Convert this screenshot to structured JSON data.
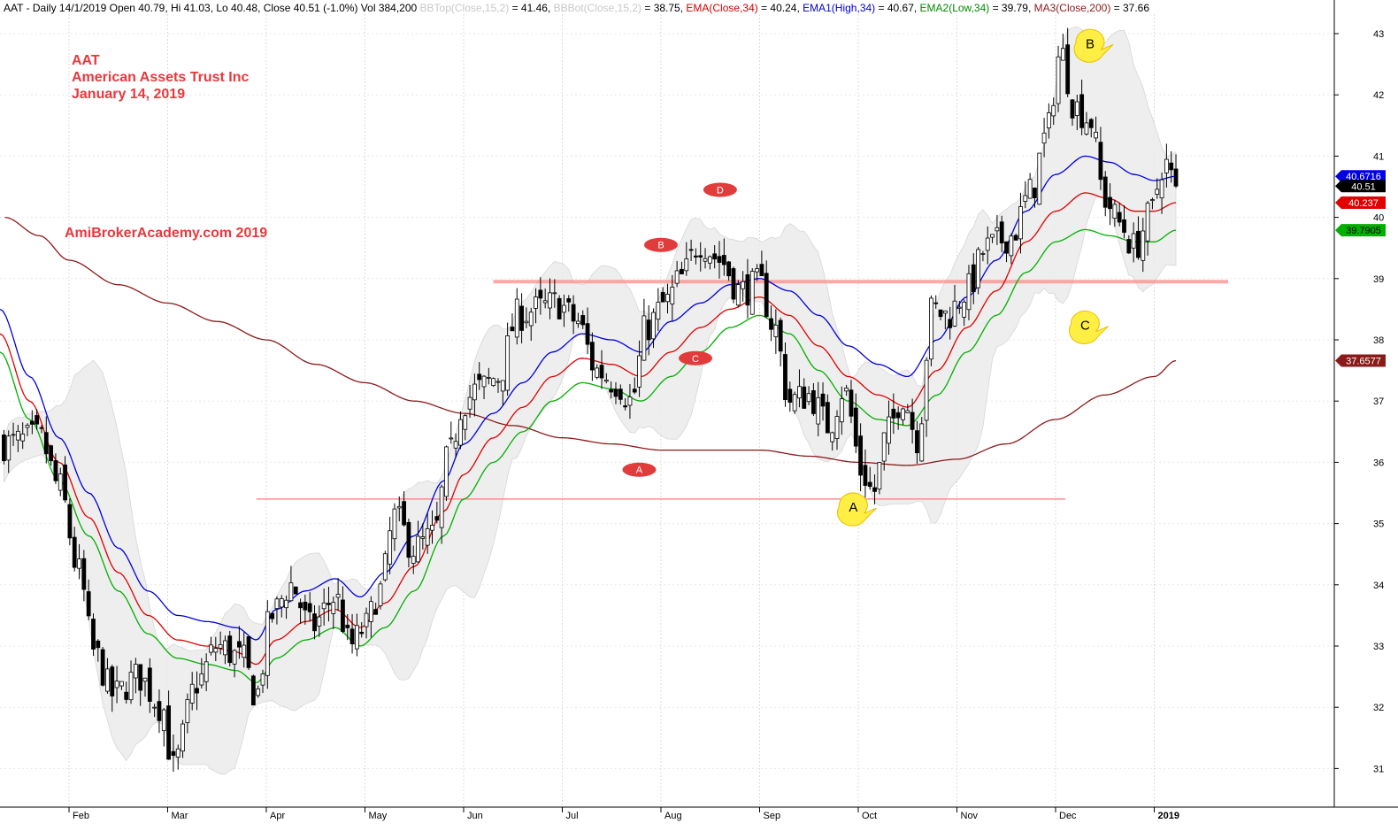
{
  "header": {
    "segments": [
      {
        "text": "AAT - Daily 14/1/2019 Open 40.79, Hi 41.03, Lo 40.48, Close 40.51 (-1.0%) Vol 384,200 ",
        "color": "black"
      },
      {
        "text": "BBTop(Close,15,2)",
        "color": "gray"
      },
      {
        "text": " = 41.46, ",
        "color": "black"
      },
      {
        "text": "BBBot(Close,15,2)",
        "color": "gray"
      },
      {
        "text": " = 38.75, ",
        "color": "black"
      },
      {
        "text": "EMA(Close,34)",
        "color": "red"
      },
      {
        "text": " = 40.24, ",
        "color": "black"
      },
      {
        "text": "EMA1(High,34)",
        "color": "blue"
      },
      {
        "text": " = 40.67, ",
        "color": "black"
      },
      {
        "text": "EMA2(Low,34)",
        "color": "green"
      },
      {
        "text": " = 39.79, ",
        "color": "black"
      },
      {
        "text": "MA3(Close,200)",
        "color": "maroon"
      },
      {
        "text": " = 37.66",
        "color": "black"
      }
    ]
  },
  "title_block": {
    "ticker": "AAT",
    "company": "American Assets Trust Inc",
    "date": "January 14, 2019"
  },
  "watermark": "AmiBrokerAcademy.com  2019",
  "colors": {
    "ema_close": "#e00000",
    "ema_high": "#0000e0",
    "ema_low": "#00b000",
    "ma200": "#8b1a1a",
    "bands": "#ececec",
    "annotation_red": "#e23b3b",
    "annotation_yellow": "#ffee44",
    "support_line": "#ff8c8c"
  },
  "chart_data": {
    "type": "candlestick",
    "y_ticks": [
      31,
      32,
      33,
      34,
      35,
      36,
      37,
      38,
      39,
      40,
      41,
      42,
      43
    ],
    "ylim": [
      30.3,
      43.5
    ],
    "x_labels": [
      "Feb",
      "Mar",
      "Apr",
      "May",
      "Jun",
      "Jul",
      "Aug",
      "Sep",
      "Oct",
      "Nov",
      "Dec",
      "2019"
    ],
    "x_label_positions": [
      0,
      1.0,
      2.0,
      3.0,
      4.0,
      5.0,
      6.0,
      7.0,
      8.0,
      9.0,
      10.0,
      11.0
    ],
    "price_tags": [
      {
        "label": "40.6716",
        "value": 40.67,
        "series": "ema_high"
      },
      {
        "label": "40.51",
        "value": 40.51,
        "series": "close"
      },
      {
        "label": "40.237",
        "value": 40.24,
        "series": "ema_close"
      },
      {
        "label": "39.7905",
        "value": 39.79,
        "series": "ema_low"
      },
      {
        "label": "37.6577",
        "value": 37.66,
        "series": "ma200"
      }
    ],
    "support_lines": [
      {
        "value": 38.95,
        "from_month": 4.3,
        "to_month": 11.75
      },
      {
        "value": 35.4,
        "from_month": 1.9,
        "to_month": 10.1
      }
    ],
    "red_ovals": [
      {
        "label": "A",
        "month": 5.78,
        "value": 35.88
      },
      {
        "label": "B",
        "month": 6.0,
        "value": 39.55
      },
      {
        "label": "C",
        "month": 6.35,
        "value": 37.7
      },
      {
        "label": "D",
        "month": 6.6,
        "value": 40.45
      }
    ],
    "yellow_callouts": [
      {
        "label": "A",
        "month": 7.95,
        "value": 35.28
      },
      {
        "label": "B",
        "month": 10.35,
        "value": 42.85
      },
      {
        "label": "C",
        "month": 10.3,
        "value": 38.25
      }
    ],
    "close_anchors": [
      [
        -0.65,
        36.3
      ],
      [
        -0.3,
        36.4
      ],
      [
        -0.1,
        35.6
      ],
      [
        0.1,
        34.2
      ],
      [
        0.25,
        32.9
      ],
      [
        0.45,
        32.2
      ],
      [
        0.7,
        32.5
      ],
      [
        0.95,
        32.0
      ],
      [
        1.05,
        31.0
      ],
      [
        1.3,
        32.4
      ],
      [
        1.5,
        33.0
      ],
      [
        1.75,
        32.8
      ],
      [
        1.9,
        32.2
      ],
      [
        2.05,
        33.5
      ],
      [
        2.25,
        34.0
      ],
      [
        2.45,
        33.3
      ],
      [
        2.7,
        33.8
      ],
      [
        2.85,
        33.0
      ],
      [
        3.0,
        33.3
      ],
      [
        3.15,
        33.9
      ],
      [
        3.3,
        35.1
      ],
      [
        3.5,
        34.6
      ],
      [
        3.7,
        34.8
      ],
      [
        3.85,
        36.1
      ],
      [
        4.0,
        37.0
      ],
      [
        4.15,
        37.2
      ],
      [
        4.35,
        37.4
      ],
      [
        4.55,
        38.4
      ],
      [
        4.75,
        38.5
      ],
      [
        4.95,
        38.6
      ],
      [
        5.15,
        38.3
      ],
      [
        5.35,
        37.5
      ],
      [
        5.55,
        37.3
      ],
      [
        5.7,
        37.0
      ],
      [
        5.85,
        38.2
      ],
      [
        6.05,
        38.6
      ],
      [
        6.2,
        39.0
      ],
      [
        6.4,
        39.6
      ],
      [
        6.6,
        39.3
      ],
      [
        6.8,
        38.8
      ],
      [
        7.0,
        38.9
      ],
      [
        7.15,
        38.2
      ],
      [
        7.3,
        37.0
      ],
      [
        7.5,
        37.1
      ],
      [
        7.7,
        36.6
      ],
      [
        7.85,
        37.2
      ],
      [
        8.05,
        35.8
      ],
      [
        8.15,
        35.5
      ],
      [
        8.3,
        36.5
      ],
      [
        8.45,
        37.1
      ],
      [
        8.6,
        36.4
      ],
      [
        8.75,
        38.5
      ],
      [
        8.9,
        38.4
      ],
      [
        9.1,
        38.8
      ],
      [
        9.3,
        39.5
      ],
      [
        9.55,
        39.7
      ],
      [
        9.75,
        40.4
      ],
      [
        9.9,
        41.3
      ],
      [
        10.05,
        42.7
      ],
      [
        10.2,
        41.8
      ],
      [
        10.35,
        41.6
      ],
      [
        10.5,
        40.3
      ],
      [
        10.65,
        39.9
      ],
      [
        10.8,
        39.5
      ],
      [
        10.95,
        40.0
      ],
      [
        11.1,
        40.9
      ],
      [
        11.22,
        40.51
      ]
    ],
    "ema_high_anchors": [
      [
        -0.7,
        38.5
      ],
      [
        -0.4,
        37.4
      ],
      [
        -0.1,
        36.4
      ],
      [
        0.2,
        35.5
      ],
      [
        0.5,
        34.6
      ],
      [
        0.8,
        33.9
      ],
      [
        1.1,
        33.5
      ],
      [
        1.4,
        33.4
      ],
      [
        1.7,
        33.3
      ],
      [
        1.9,
        33.1
      ],
      [
        2.1,
        33.6
      ],
      [
        2.4,
        33.9
      ],
      [
        2.7,
        34.1
      ],
      [
        2.95,
        33.8
      ],
      [
        3.2,
        34.2
      ],
      [
        3.5,
        34.8
      ],
      [
        3.8,
        35.7
      ],
      [
        4.0,
        36.3
      ],
      [
        4.3,
        36.8
      ],
      [
        4.6,
        37.3
      ],
      [
        4.9,
        37.8
      ],
      [
        5.2,
        38.1
      ],
      [
        5.5,
        38.0
      ],
      [
        5.8,
        37.8
      ],
      [
        6.1,
        38.3
      ],
      [
        6.4,
        38.6
      ],
      [
        6.7,
        38.9
      ],
      [
        7.0,
        39.0
      ],
      [
        7.3,
        38.8
      ],
      [
        7.6,
        38.4
      ],
      [
        7.9,
        37.9
      ],
      [
        8.2,
        37.6
      ],
      [
        8.5,
        37.4
      ],
      [
        8.8,
        38.0
      ],
      [
        9.1,
        38.7
      ],
      [
        9.4,
        39.3
      ],
      [
        9.7,
        40.1
      ],
      [
        10.0,
        40.7
      ],
      [
        10.3,
        41.0
      ],
      [
        10.55,
        40.9
      ],
      [
        10.8,
        40.7
      ],
      [
        11.0,
        40.6
      ],
      [
        11.22,
        40.67
      ]
    ],
    "ema_close_anchors": [
      [
        -0.7,
        38.1
      ],
      [
        -0.4,
        37.0
      ],
      [
        -0.1,
        36.0
      ],
      [
        0.2,
        35.1
      ],
      [
        0.5,
        34.2
      ],
      [
        0.8,
        33.5
      ],
      [
        1.1,
        33.1
      ],
      [
        1.4,
        33.0
      ],
      [
        1.7,
        32.9
      ],
      [
        1.9,
        32.7
      ],
      [
        2.1,
        33.1
      ],
      [
        2.4,
        33.4
      ],
      [
        2.7,
        33.6
      ],
      [
        2.95,
        33.3
      ],
      [
        3.2,
        33.7
      ],
      [
        3.5,
        34.3
      ],
      [
        3.8,
        35.2
      ],
      [
        4.0,
        35.8
      ],
      [
        4.3,
        36.4
      ],
      [
        4.6,
        36.9
      ],
      [
        4.9,
        37.4
      ],
      [
        5.2,
        37.7
      ],
      [
        5.5,
        37.6
      ],
      [
        5.8,
        37.4
      ],
      [
        6.1,
        37.8
      ],
      [
        6.4,
        38.2
      ],
      [
        6.7,
        38.5
      ],
      [
        7.0,
        38.7
      ],
      [
        7.3,
        38.4
      ],
      [
        7.6,
        37.9
      ],
      [
        7.9,
        37.4
      ],
      [
        8.2,
        37.1
      ],
      [
        8.5,
        36.9
      ],
      [
        8.8,
        37.5
      ],
      [
        9.1,
        38.2
      ],
      [
        9.4,
        38.8
      ],
      [
        9.7,
        39.6
      ],
      [
        10.0,
        40.1
      ],
      [
        10.3,
        40.4
      ],
      [
        10.55,
        40.3
      ],
      [
        10.8,
        40.1
      ],
      [
        11.0,
        40.1
      ],
      [
        11.22,
        40.24
      ]
    ],
    "ema_low_anchors": [
      [
        -0.7,
        37.8
      ],
      [
        -0.4,
        36.7
      ],
      [
        -0.1,
        35.7
      ],
      [
        0.2,
        34.8
      ],
      [
        0.5,
        33.9
      ],
      [
        0.8,
        33.2
      ],
      [
        1.1,
        32.8
      ],
      [
        1.4,
        32.7
      ],
      [
        1.7,
        32.6
      ],
      [
        1.9,
        32.4
      ],
      [
        2.1,
        32.8
      ],
      [
        2.4,
        33.1
      ],
      [
        2.7,
        33.3
      ],
      [
        2.95,
        33.0
      ],
      [
        3.2,
        33.3
      ],
      [
        3.5,
        33.9
      ],
      [
        3.8,
        34.8
      ],
      [
        4.0,
        35.4
      ],
      [
        4.3,
        36.0
      ],
      [
        4.6,
        36.5
      ],
      [
        4.9,
        37.0
      ],
      [
        5.2,
        37.3
      ],
      [
        5.5,
        37.2
      ],
      [
        5.8,
        37.0
      ],
      [
        6.1,
        37.4
      ],
      [
        6.4,
        37.8
      ],
      [
        6.7,
        38.2
      ],
      [
        7.0,
        38.4
      ],
      [
        7.3,
        38.1
      ],
      [
        7.6,
        37.5
      ],
      [
        7.9,
        37.0
      ],
      [
        8.2,
        36.7
      ],
      [
        8.5,
        36.6
      ],
      [
        8.8,
        37.1
      ],
      [
        9.1,
        37.8
      ],
      [
        9.4,
        38.4
      ],
      [
        9.7,
        39.1
      ],
      [
        10.0,
        39.6
      ],
      [
        10.3,
        39.8
      ],
      [
        10.55,
        39.7
      ],
      [
        10.8,
        39.6
      ],
      [
        11.0,
        39.6
      ],
      [
        11.22,
        39.79
      ]
    ],
    "ma200_anchors": [
      [
        -0.65,
        40.0
      ],
      [
        -0.3,
        39.7
      ],
      [
        0.0,
        39.3
      ],
      [
        0.5,
        38.9
      ],
      [
        1.0,
        38.6
      ],
      [
        1.5,
        38.3
      ],
      [
        2.0,
        38.0
      ],
      [
        2.5,
        37.6
      ],
      [
        3.0,
        37.3
      ],
      [
        3.5,
        37.0
      ],
      [
        4.0,
        36.8
      ],
      [
        4.5,
        36.6
      ],
      [
        5.0,
        36.4
      ],
      [
        5.5,
        36.3
      ],
      [
        6.0,
        36.2
      ],
      [
        6.5,
        36.2
      ],
      [
        7.0,
        36.2
      ],
      [
        7.5,
        36.1
      ],
      [
        8.0,
        36.0
      ],
      [
        8.5,
        35.95
      ],
      [
        9.0,
        36.05
      ],
      [
        9.5,
        36.3
      ],
      [
        10.0,
        36.7
      ],
      [
        10.5,
        37.1
      ],
      [
        11.0,
        37.4
      ],
      [
        11.22,
        37.66
      ]
    ]
  }
}
